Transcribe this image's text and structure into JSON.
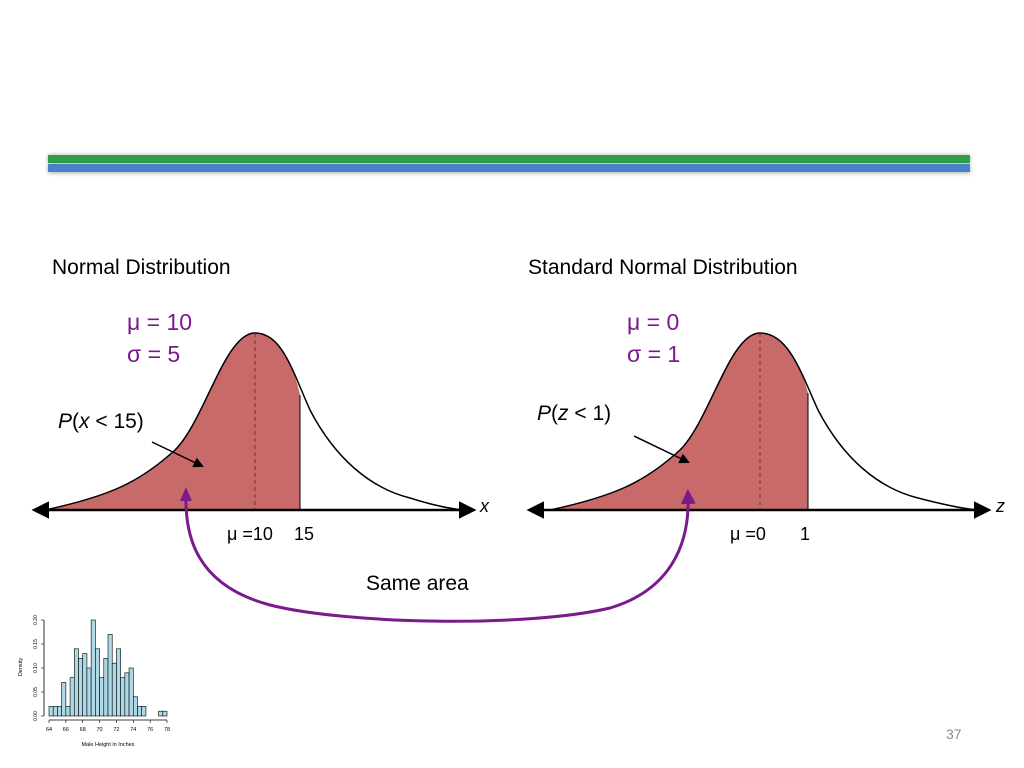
{
  "header": {
    "bar_colors": [
      "#2ea04a",
      "#4a80c8"
    ]
  },
  "left": {
    "heading": "Normal Distribution",
    "mu": "μ = 10",
    "sigma": "σ = 5",
    "prob_p": "P",
    "prob_open": "(",
    "prob_var": "x",
    "prob_rest": " < 15)",
    "tick_mean": "μ =10",
    "tick_value": "15",
    "axis_var": "x"
  },
  "right": {
    "heading": "Standard Normal Distribution",
    "mu": "μ = 0",
    "sigma": "σ = 1",
    "prob_p": "P",
    "prob_open": "(",
    "prob_var": "z",
    "prob_rest": " < 1)",
    "tick_mean": "μ =0",
    "tick_value": "1",
    "axis_var": "z"
  },
  "same_area_label": "Same area",
  "page_number": "37",
  "colors": {
    "shade": "#c96a6a",
    "param_text": "#7a1a8c",
    "arrow": "#7a1a8c"
  },
  "histogram": {
    "chart_data": {
      "type": "bar",
      "xlabel": "Male Height in Inches",
      "ylabel": "Density",
      "xlim": [
        64,
        78
      ],
      "ylim": [
        0,
        0.2
      ],
      "x_ticks": [
        "64",
        "66",
        "68",
        "70",
        "72",
        "74",
        "76",
        "78"
      ],
      "y_ticks": [
        "0.00",
        "0.05",
        "0.10",
        "0.15",
        "0.20"
      ],
      "bin_width": 0.5,
      "bin_starts": [
        64,
        64.5,
        65,
        65.5,
        66,
        66.5,
        67,
        67.5,
        68,
        68.5,
        69,
        69.5,
        70,
        70.5,
        71,
        71.5,
        72,
        72.5,
        73,
        73.5,
        74,
        74.5,
        75,
        75.5,
        76,
        76.5,
        77,
        77.5
      ],
      "values": [
        0.02,
        0.02,
        0.02,
        0.07,
        0.02,
        0.08,
        0.14,
        0.12,
        0.13,
        0.1,
        0.2,
        0.14,
        0.08,
        0.12,
        0.17,
        0.11,
        0.14,
        0.08,
        0.09,
        0.1,
        0.04,
        0.02,
        0.02,
        0.0,
        0.0,
        0.0,
        0.01,
        0.01
      ],
      "bar_color": "#add8e6"
    }
  }
}
